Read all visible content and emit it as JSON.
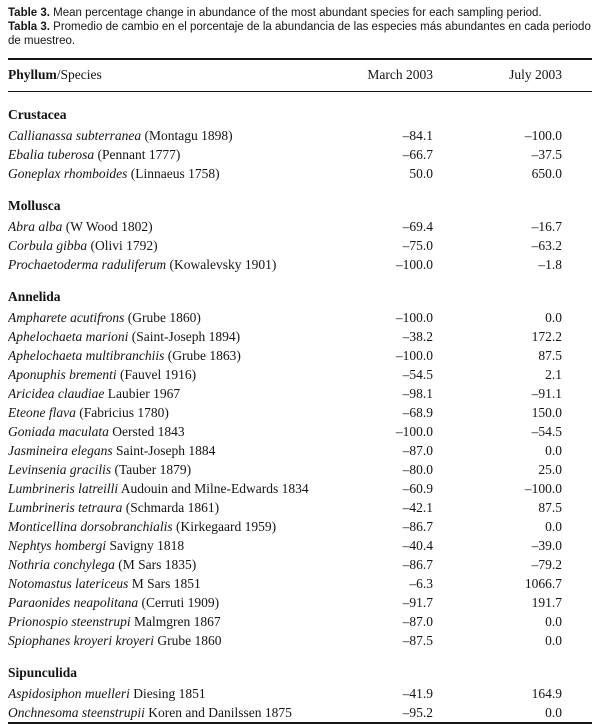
{
  "caption": {
    "en": {
      "label": "Table 3.",
      "text": " Mean percentage change in abundance of the most abundant species for each sampling period."
    },
    "es": {
      "label": "Tabla 3.",
      "text": " Promedio de cambio en el porcentaje de la abundancia de las especies más abundantes en cada periodo de muestreo."
    }
  },
  "table": {
    "header": {
      "phylum": "Phyllum",
      "species_suffix": "/Species",
      "march": "March 2003",
      "july": "July 2003"
    },
    "sections": [
      {
        "name": "Crustacea",
        "rows": [
          {
            "species": "Callianassa subterranea",
            "authority": "(Montagu 1898)",
            "march": "–84.1",
            "july": "–100.0"
          },
          {
            "species": "Ebalia tuberosa",
            "authority": "(Pennant 1777)",
            "march": "–66.7",
            "july": "–37.5"
          },
          {
            "species": "Goneplax rhomboides",
            "authority": "(Linnaeus 1758)",
            "march": "50.0",
            "july": "650.0"
          }
        ]
      },
      {
        "name": "Mollusca",
        "rows": [
          {
            "species": "Abra alba",
            "authority": "(W Wood 1802)",
            "march": "–69.4",
            "july": "–16.7"
          },
          {
            "species": "Corbula gibba",
            "authority": "(Olivi 1792)",
            "march": "–75.0",
            "july": "–63.2"
          },
          {
            "species": "Prochaetoderma raduliferum",
            "authority": "(Kowalevsky 1901)",
            "march": "–100.0",
            "july": "–1.8"
          }
        ]
      },
      {
        "name": "Annelida",
        "rows": [
          {
            "species": "Ampharete acutifrons",
            "authority": "(Grube 1860)",
            "march": "–100.0",
            "july": "0.0"
          },
          {
            "species": "Aphelochaeta marioni",
            "authority": "(Saint-Joseph 1894)",
            "march": "–38.2",
            "july": "172.2"
          },
          {
            "species": "Aphelochaeta multibranchiis",
            "authority": "(Grube 1863)",
            "march": "–100.0",
            "july": "87.5"
          },
          {
            "species": "Aponuphis brementi",
            "authority": "(Fauvel 1916)",
            "march": "–54.5",
            "july": "2.1"
          },
          {
            "species": "Aricidea claudiae",
            "authority": "Laubier 1967",
            "march": "–98.1",
            "july": "–91.1"
          },
          {
            "species": "Eteone flava",
            "authority": "(Fabricius 1780)",
            "march": "–68.9",
            "july": "150.0"
          },
          {
            "species": "Goniada maculata",
            "authority": "Oersted 1843",
            "march": "–100.0",
            "july": "–54.5"
          },
          {
            "species": "Jasmineira elegans",
            "authority": "Saint-Joseph 1884",
            "march": "–87.0",
            "july": "0.0"
          },
          {
            "species": "Levinsenia gracilis",
            "authority": "(Tauber 1879)",
            "march": "–80.0",
            "july": "25.0"
          },
          {
            "species": "Lumbrineris latreilli",
            "authority": "Audouin and Milne-Edwards 1834",
            "march": "–60.9",
            "july": "–100.0"
          },
          {
            "species": "Lumbrineris tetraura",
            "authority": "(Schmarda 1861)",
            "march": "–42.1",
            "july": "87.5"
          },
          {
            "species": "Monticellina dorsobranchialis",
            "authority": "(Kirkegaard 1959)",
            "march": "–86.7",
            "july": "0.0"
          },
          {
            "species": "Nephtys hombergi",
            "authority": "Savigny 1818",
            "march": "–40.4",
            "july": "–39.0"
          },
          {
            "species": "Nothria conchylega",
            "authority": "(M Sars 1835)",
            "march": "–86.7",
            "july": "–79.2"
          },
          {
            "species": "Notomastus latericeus",
            "authority": "M Sars 1851",
            "march": "–6.3",
            "july": "1066.7"
          },
          {
            "species": "Paraonides neapolitana",
            "authority": "(Cerruti 1909)",
            "march": "–91.7",
            "july": "191.7"
          },
          {
            "species": "Prionospio steenstrupi",
            "authority": "Malmgren 1867",
            "march": "–87.0",
            "july": "0.0"
          },
          {
            "species": "Spiophanes kroyeri kroyeri",
            "authority": "Grube 1860",
            "march": "–87.5",
            "july": "0.0"
          }
        ]
      },
      {
        "name": "Sipunculida",
        "rows": [
          {
            "species": "Aspidosiphon muelleri",
            "authority": "Diesing 1851",
            "march": "–41.9",
            "july": "164.9"
          },
          {
            "species": "Onchnesoma steenstrupii",
            "authority": "Koren and Danilssen 1875",
            "march": "–95.2",
            "july": "0.0"
          }
        ]
      }
    ]
  }
}
